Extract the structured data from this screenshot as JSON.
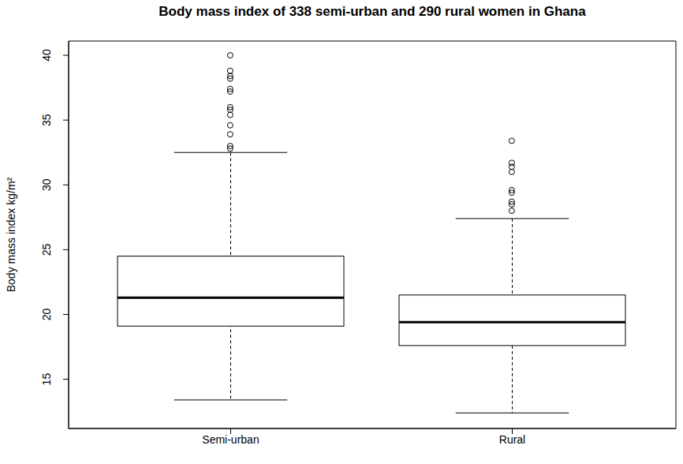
{
  "chart_data": {
    "type": "box",
    "title": "Body mass index of 338 semi-urban and 290 rural women in Ghana",
    "y_label": "Body mass index kg/m²",
    "categories": [
      "Semi-urban",
      "Rural"
    ],
    "whisker_low": [
      13.4,
      12.4
    ],
    "q1": [
      19.1,
      17.6
    ],
    "median": [
      21.3,
      19.4
    ],
    "q3": [
      24.5,
      21.5
    ],
    "whisker_high": [
      32.5,
      27.4
    ],
    "outliers": [
      [
        40.0,
        38.8,
        38.4,
        38.2,
        37.4,
        37.2,
        36.0,
        35.8,
        35.4,
        34.6,
        33.9,
        33.0,
        32.8
      ],
      [
        33.4,
        31.7,
        31.4,
        31.0,
        29.6,
        29.4,
        28.7,
        28.5,
        28.0
      ]
    ],
    "color": "#000000",
    "ylim": [
      11.2,
      41.1
    ],
    "yticks": [
      15,
      20,
      25,
      30,
      35,
      40
    ],
    "grid": false
  }
}
